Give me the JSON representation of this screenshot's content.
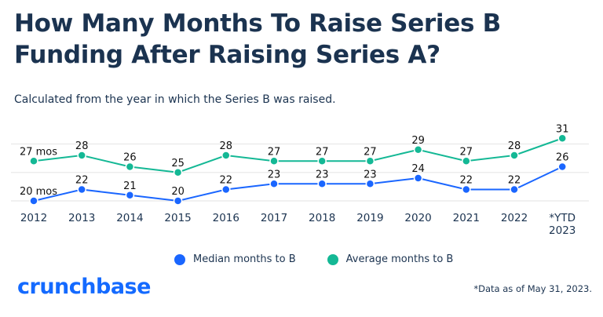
{
  "title": "How Many Months To Raise Series B Funding After Raising Series A?",
  "subtitle": "Calculated from the year in which the Series B was raised.",
  "footnote": "*Data as of May 31, 2023.",
  "logo_text": "crunchbase",
  "colors": {
    "median": "#1a66ff",
    "average": "#14b895",
    "title": "#1b3350",
    "logo": "#146aff"
  },
  "chart_data": {
    "type": "line",
    "title": "How Many Months To Raise Series B Funding After Raising Series A?",
    "subtitle": "Calculated from the year in which the Series B was raised.",
    "categories": [
      "2012",
      "2013",
      "2014",
      "2015",
      "2016",
      "2017",
      "2018",
      "2019",
      "2020",
      "2021",
      "2022",
      "*YTD 2023"
    ],
    "series": [
      {
        "name": "Median months to B",
        "color": "#1a66ff",
        "values": [
          20,
          22,
          21,
          20,
          22,
          23,
          23,
          23,
          24,
          22,
          22,
          26
        ],
        "labels": [
          "20 mos",
          "22",
          "21",
          "20",
          "22",
          "23",
          "23",
          "23",
          "24",
          "22",
          "22",
          "26"
        ]
      },
      {
        "name": "Average months to B",
        "color": "#14b895",
        "values": [
          27,
          28,
          26,
          25,
          28,
          27,
          27,
          27,
          29,
          27,
          28,
          31
        ],
        "labels": [
          "27 mos",
          "28",
          "26",
          "25",
          "28",
          "27",
          "27",
          "27",
          "29",
          "27",
          "28",
          "31"
        ]
      }
    ],
    "gridlines": [
      20,
      25,
      30
    ],
    "grid": true,
    "legend": "bottom-center",
    "xlabel": "",
    "ylabel": ""
  }
}
